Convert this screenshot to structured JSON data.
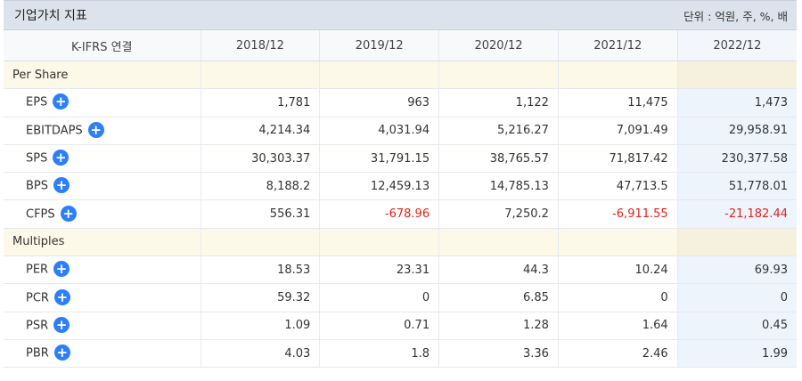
{
  "header": {
    "title": "기업가치 지표",
    "unit": "단위 : 억원, 주, %, 배"
  },
  "table": {
    "columns": [
      "K-IFRS 연결",
      "2018/12",
      "2019/12",
      "2020/12",
      "2021/12",
      "2022/12"
    ],
    "negative_color": "#e2231a",
    "sections": [
      {
        "name": "Per Share",
        "rows": [
          {
            "label": "EPS",
            "values": [
              "1,781",
              "963",
              "1,122",
              "11,475",
              "1,473"
            ]
          },
          {
            "label": "EBITDAPS",
            "values": [
              "4,214.34",
              "4,031.94",
              "5,216.27",
              "7,091.49",
              "29,958.91"
            ]
          },
          {
            "label": "SPS",
            "values": [
              "30,303.37",
              "31,791.15",
              "38,765.57",
              "71,817.42",
              "230,377.58"
            ]
          },
          {
            "label": "BPS",
            "values": [
              "8,188.2",
              "12,459.13",
              "14,785.13",
              "47,713.5",
              "51,778.01"
            ]
          },
          {
            "label": "CFPS",
            "values": [
              "556.31",
              "-678.96",
              "7,250.2",
              "-6,911.55",
              "-21,182.44"
            ]
          }
        ]
      },
      {
        "name": "Multiples",
        "rows": [
          {
            "label": "PER",
            "values": [
              "18.53",
              "23.31",
              "44.3",
              "10.24",
              "69.93"
            ]
          },
          {
            "label": "PCR",
            "values": [
              "59.32",
              "0",
              "6.85",
              "0",
              "0"
            ]
          },
          {
            "label": "PSR",
            "values": [
              "1.09",
              "0.71",
              "1.28",
              "1.64",
              "0.45"
            ]
          },
          {
            "label": "PBR",
            "values": [
              "4.03",
              "1.8",
              "3.36",
              "2.46",
              "1.99"
            ]
          }
        ]
      }
    ],
    "expand_icon": "plus-circle-icon"
  }
}
